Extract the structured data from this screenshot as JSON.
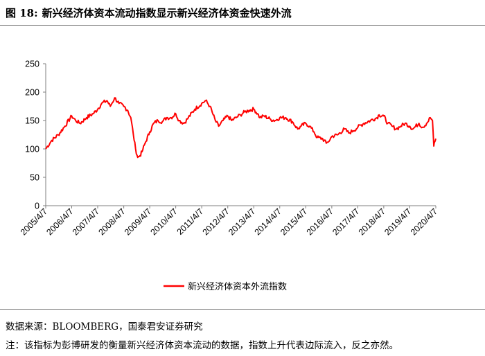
{
  "header": {
    "figure_label": "图 18:",
    "title": "新兴经济体资本流动指数显示新兴经济体资金快速外流"
  },
  "footer": {
    "source": "数据来源：BLOOMBERG，国泰君安证券研究",
    "note": "注：该指标为彭博研发的衡量新兴经济体资本流动的数据，指数上升代表边际流入，反之亦然。"
  },
  "chart_data": {
    "type": "line",
    "title": "",
    "xlabel": "",
    "ylabel": "",
    "ylim": [
      0,
      250
    ],
    "yticks": [
      "0",
      "50",
      "100",
      "150",
      "200",
      "250"
    ],
    "xtick_labels": [
      "2005/4/7",
      "2006/4/7",
      "2007/4/7",
      "2008/4/7",
      "2009/4/7",
      "2010/4/7",
      "2011/4/7",
      "2012/4/7",
      "2013/4/7",
      "2014/4/7",
      "2015/4/7",
      "2016/4/7",
      "2017/4/7",
      "2018/4/7",
      "2019/4/7",
      "2020/4/7"
    ],
    "grid": false,
    "legend_position": "bottom",
    "colors": {
      "series": "#ff0000",
      "axis": "#7f7f7f"
    },
    "series": [
      {
        "name": "新兴经济体资本外流指数",
        "x": [
          "2005-04-07",
          "2005-07-01",
          "2005-10-01",
          "2006-01-01",
          "2006-04-07",
          "2006-06-01",
          "2006-08-01",
          "2006-11-01",
          "2007-02-01",
          "2007-04-07",
          "2007-06-01",
          "2007-08-15",
          "2007-10-01",
          "2007-12-01",
          "2008-02-01",
          "2008-04-07",
          "2008-06-01",
          "2008-07-15",
          "2008-08-20",
          "2008-09-20",
          "2008-10-20",
          "2008-11-20",
          "2008-12-20",
          "2009-02-01",
          "2009-04-07",
          "2009-06-01",
          "2009-08-01",
          "2009-10-01",
          "2009-12-01",
          "2010-02-01",
          "2010-04-07",
          "2010-05-25",
          "2010-08-01",
          "2010-10-01",
          "2011-01-01",
          "2011-04-07",
          "2011-06-01",
          "2011-08-01",
          "2011-09-15",
          "2011-10-15",
          "2011-12-01",
          "2012-02-01",
          "2012-04-07",
          "2012-06-01",
          "2012-08-01",
          "2012-10-01",
          "2012-12-01",
          "2013-02-01",
          "2013-04-07",
          "2013-06-01",
          "2013-07-01",
          "2013-09-01",
          "2013-12-01",
          "2014-02-01",
          "2014-04-07",
          "2014-07-01",
          "2014-10-01",
          "2014-12-15",
          "2015-02-01",
          "2015-04-07",
          "2015-06-01",
          "2015-08-01",
          "2015-09-15",
          "2015-12-01",
          "2016-01-20",
          "2016-02-15",
          "2016-04-07",
          "2016-07-01",
          "2016-10-01",
          "2016-12-01",
          "2017-02-01",
          "2017-04-07",
          "2017-07-01",
          "2017-10-01",
          "2018-01-01",
          "2018-02-01",
          "2018-04-07",
          "2018-06-01",
          "2018-08-01",
          "2018-10-01",
          "2018-12-01",
          "2019-02-01",
          "2019-04-07",
          "2019-05-20",
          "2019-08-15",
          "2019-10-01",
          "2019-12-01",
          "2020-01-20",
          "2020-02-20",
          "2020-03-10",
          "2020-03-20",
          "2020-04-07"
        ],
        "values": [
          100,
          115,
          125,
          140,
          158,
          150,
          145,
          155,
          162,
          170,
          180,
          185,
          175,
          190,
          180,
          175,
          168,
          155,
          125,
          100,
          85,
          88,
          95,
          110,
          130,
          145,
          150,
          148,
          155,
          155,
          162,
          150,
          145,
          155,
          170,
          180,
          185,
          175,
          160,
          150,
          140,
          150,
          158,
          150,
          155,
          160,
          165,
          168,
          170,
          162,
          155,
          158,
          152,
          150,
          155,
          155,
          148,
          135,
          140,
          145,
          140,
          130,
          120,
          118,
          110,
          112,
          122,
          125,
          135,
          128,
          132,
          138,
          145,
          150,
          155,
          160,
          158,
          145,
          140,
          135,
          140,
          145,
          140,
          135,
          145,
          138,
          145,
          155,
          150,
          105,
          112,
          118
        ]
      }
    ]
  }
}
